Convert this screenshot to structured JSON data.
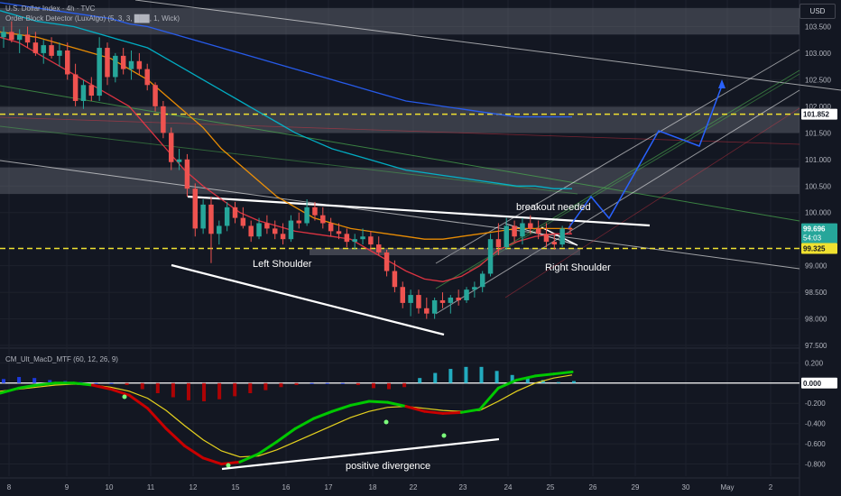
{
  "header": {
    "title": "U.S. Dollar Index · 4h · TVC",
    "indicator": "Order Block Detector (LuxAlgo) (5, 3, 3, ███, 1, Wick)",
    "currency": "USD"
  },
  "sub_header": {
    "indicator": "CM_Ult_MacD_MTF (60, 12, 26, 9)"
  },
  "colors": {
    "background": "#131722",
    "up_candle": "#26a69a",
    "down_candle": "#ef5350",
    "dashed_level": "#f0e130",
    "projection": "#2962ff",
    "macd_up": "#00c800",
    "macd_down": "#c80000",
    "signal": "#e6d21e",
    "hist_up": "#26c6da",
    "hist_blue": "#1e40ff"
  },
  "chart_data": [
    {
      "type": "candlestick",
      "title": "U.S. Dollar Index · 4h · TVC",
      "x_tick_labels": [
        "8",
        "9",
        "10",
        "11",
        "12",
        "15",
        "16",
        "17",
        "18",
        "22",
        "23",
        "24",
        "25",
        "26",
        "29",
        "30",
        "May",
        "2"
      ],
      "y_ticks": [
        103.5,
        103.0,
        102.5,
        102.0,
        101.5,
        101.0,
        100.5,
        100.0,
        99.0,
        98.5,
        98.0,
        97.5
      ],
      "ylim": [
        97.45,
        104.0
      ],
      "price_labels": [
        {
          "value": 101.852,
          "text": "101.852"
        },
        {
          "value": 99.696,
          "text": "99.696",
          "sub": "54:03"
        },
        {
          "value": 99.325,
          "text": "99.325"
        }
      ],
      "levels": [
        {
          "value": 101.852,
          "style": "dashed"
        },
        {
          "value": 99.325,
          "style": "dashed"
        }
      ],
      "zones": [
        {
          "from": 103.35,
          "to": 103.85
        },
        {
          "from": 101.5,
          "to": 101.99
        },
        {
          "from": 100.35,
          "to": 100.85
        }
      ],
      "annotations": [
        "Left Shoulder",
        "breakout needed",
        "Right Shoulder"
      ],
      "candles": [
        [
          103.3,
          103.5,
          103.1,
          103.4
        ],
        [
          103.4,
          103.6,
          103.2,
          103.25
        ],
        [
          103.25,
          103.45,
          103.0,
          103.35
        ],
        [
          103.35,
          103.5,
          103.1,
          103.2
        ],
        [
          103.2,
          103.4,
          102.95,
          103.0
        ],
        [
          103.0,
          103.25,
          102.8,
          103.15
        ],
        [
          103.15,
          103.3,
          102.9,
          102.95
        ],
        [
          102.95,
          103.2,
          102.75,
          103.05
        ],
        [
          103.05,
          103.2,
          102.5,
          102.6
        ],
        [
          102.6,
          102.8,
          102.0,
          102.1
        ],
        [
          102.1,
          102.5,
          101.95,
          102.4
        ],
        [
          102.4,
          102.55,
          102.1,
          102.2
        ],
        [
          102.2,
          103.3,
          102.1,
          103.1
        ],
        [
          103.1,
          103.2,
          102.4,
          102.55
        ],
        [
          102.55,
          103.0,
          102.45,
          102.95
        ],
        [
          102.95,
          103.1,
          102.6,
          102.7
        ],
        [
          102.7,
          103.05,
          102.5,
          102.85
        ],
        [
          102.85,
          103.0,
          102.6,
          102.7
        ],
        [
          102.7,
          102.8,
          102.3,
          102.4
        ],
        [
          102.4,
          102.45,
          101.9,
          102.0
        ],
        [
          102.0,
          102.1,
          101.4,
          101.5
        ],
        [
          101.5,
          101.6,
          100.8,
          100.95
        ],
        [
          100.95,
          101.2,
          100.8,
          101.0
        ],
        [
          101.0,
          101.1,
          100.3,
          100.45
        ],
        [
          100.45,
          100.55,
          99.55,
          99.7
        ],
        [
          99.7,
          100.25,
          99.6,
          100.15
        ],
        [
          100.15,
          100.3,
          99.05,
          99.6
        ],
        [
          99.6,
          99.85,
          99.4,
          99.75
        ],
        [
          99.75,
          100.2,
          99.65,
          100.1
        ],
        [
          100.1,
          100.2,
          99.8,
          99.9
        ],
        [
          99.9,
          100.1,
          99.7,
          99.75
        ],
        [
          99.75,
          99.85,
          99.45,
          99.55
        ],
        [
          99.55,
          99.9,
          99.5,
          99.8
        ],
        [
          99.8,
          99.95,
          99.6,
          99.7
        ],
        [
          99.7,
          99.85,
          99.5,
          99.6
        ],
        [
          99.6,
          99.8,
          99.4,
          99.5
        ],
        [
          99.5,
          99.95,
          99.45,
          99.85
        ],
        [
          99.85,
          100.0,
          99.7,
          99.8
        ],
        [
          99.8,
          100.25,
          99.75,
          100.1
        ],
        [
          100.1,
          100.2,
          99.85,
          99.95
        ],
        [
          99.95,
          100.1,
          99.7,
          99.8
        ],
        [
          99.8,
          99.9,
          99.55,
          99.65
        ],
        [
          99.65,
          99.8,
          99.5,
          99.6
        ],
        [
          99.6,
          99.7,
          99.35,
          99.45
        ],
        [
          99.45,
          99.6,
          99.3,
          99.5
        ],
        [
          99.5,
          99.7,
          99.4,
          99.55
        ],
        [
          99.55,
          99.65,
          99.3,
          99.4
        ],
        [
          99.4,
          99.55,
          99.2,
          99.25
        ],
        [
          99.25,
          99.3,
          98.8,
          98.9
        ],
        [
          98.9,
          99.1,
          98.5,
          98.6
        ],
        [
          98.6,
          98.7,
          98.2,
          98.3
        ],
        [
          98.3,
          98.55,
          98.05,
          98.45
        ],
        [
          98.45,
          98.55,
          98.1,
          98.2
        ],
        [
          98.2,
          98.4,
          98.0,
          98.1
        ],
        [
          98.1,
          98.4,
          98.0,
          98.35
        ],
        [
          98.35,
          98.5,
          98.2,
          98.3
        ],
        [
          98.3,
          98.45,
          98.1,
          98.4
        ],
        [
          98.4,
          98.55,
          98.25,
          98.35
        ],
        [
          98.35,
          98.6,
          98.3,
          98.55
        ],
        [
          98.55,
          98.7,
          98.4,
          98.6
        ],
        [
          98.6,
          98.9,
          98.5,
          98.85
        ],
        [
          98.85,
          99.6,
          98.8,
          99.5
        ],
        [
          99.5,
          99.8,
          99.2,
          99.35
        ],
        [
          99.35,
          99.9,
          99.3,
          99.75
        ],
        [
          99.75,
          99.85,
          99.45,
          99.55
        ],
        [
          99.55,
          99.9,
          99.4,
          99.8
        ],
        [
          99.8,
          99.95,
          99.6,
          99.7
        ],
        [
          99.7,
          99.85,
          99.5,
          99.6
        ],
        [
          99.6,
          99.8,
          99.35,
          99.45
        ],
        [
          99.45,
          99.6,
          99.3,
          99.4
        ],
        [
          99.4,
          99.75,
          99.35,
          99.7
        ],
        [
          99.7,
          99.8,
          99.6,
          99.696
        ]
      ],
      "ma_series": [
        {
          "color": "#f23645",
          "values": [
            103.3,
            103.2,
            103.0,
            102.8,
            102.6,
            102.4,
            102.2,
            102.0,
            101.6,
            101.2,
            100.8,
            100.5,
            100.25,
            100.0,
            99.85,
            99.75,
            99.65,
            99.6,
            99.55,
            99.5,
            99.3,
            99.1,
            98.9,
            98.75,
            98.7,
            98.8,
            99.0,
            99.3,
            99.45,
            99.55,
            99.6,
            99.6
          ]
        },
        {
          "color": "#ff9800",
          "values": [
            103.4,
            103.35,
            103.3,
            103.2,
            103.1,
            103.0,
            102.9,
            102.7,
            102.5,
            102.2,
            101.9,
            101.6,
            101.2,
            100.9,
            100.6,
            100.3,
            100.1,
            99.9,
            99.8,
            99.7,
            99.65,
            99.6,
            99.55,
            99.5,
            99.5,
            99.55,
            99.6,
            99.65,
            99.7,
            99.7,
            99.7,
            99.7
          ]
        },
        {
          "color": "#00bcd4",
          "values": [
            103.8,
            103.7,
            103.6,
            103.55,
            103.5,
            103.4,
            103.3,
            103.2,
            103.1,
            102.9,
            102.7,
            102.5,
            102.3,
            102.1,
            101.9,
            101.7,
            101.5,
            101.35,
            101.2,
            101.1,
            101.0,
            100.9,
            100.8,
            100.75,
            100.7,
            100.65,
            100.6,
            100.55,
            100.5,
            100.5,
            100.45,
            100.45
          ]
        },
        {
          "color": "#2962ff",
          "values": [
            103.95,
            103.9,
            103.85,
            103.8,
            103.75,
            103.7,
            103.65,
            103.55,
            103.5,
            103.4,
            103.3,
            103.2,
            103.1,
            103.0,
            102.9,
            102.8,
            102.7,
            102.6,
            102.5,
            102.4,
            102.3,
            102.2,
            102.1,
            102.05,
            102.0,
            101.95,
            101.9,
            101.85,
            101.8,
            101.8,
            101.8,
            101.8
          ]
        }
      ]
    },
    {
      "type": "line",
      "title": "CM_Ult_MacD_MTF (60, 12, 26, 9)",
      "y_ticks": [
        0.2,
        0.0,
        -0.2,
        -0.4,
        -0.6,
        -0.8
      ],
      "ylim": [
        -0.92,
        0.31
      ],
      "zero_value": "0.000",
      "annotation": "positive divergence",
      "series": [
        {
          "values": [
            -0.1,
            -0.05,
            -0.02,
            0.0,
            0.0,
            -0.02,
            -0.06,
            -0.12,
            -0.25,
            -0.45,
            -0.62,
            -0.74,
            -0.8,
            -0.78,
            -0.7,
            -0.58,
            -0.45,
            -0.35,
            -0.28,
            -0.22,
            -0.18,
            -0.19,
            -0.23,
            -0.28,
            -0.3,
            -0.29,
            -0.26,
            -0.05,
            0.03,
            0.07,
            0.09,
            0.11
          ]
        },
        {
          "values": [
            -0.08,
            -0.06,
            -0.04,
            -0.02,
            -0.01,
            -0.02,
            -0.04,
            -0.08,
            -0.15,
            -0.27,
            -0.42,
            -0.56,
            -0.67,
            -0.73,
            -0.72,
            -0.66,
            -0.58,
            -0.5,
            -0.42,
            -0.34,
            -0.28,
            -0.24,
            -0.23,
            -0.25,
            -0.27,
            -0.28,
            -0.27,
            -0.18,
            -0.08,
            0.0,
            0.05,
            0.08
          ]
        }
      ],
      "histogram": [
        0.04,
        0.06,
        0.05,
        0.03,
        0.02,
        0.01,
        0.0,
        0.0,
        -0.02,
        -0.06,
        -0.1,
        -0.14,
        -0.17,
        -0.18,
        -0.16,
        -0.13,
        -0.1,
        -0.07,
        -0.04,
        -0.02,
        0.0,
        0.0,
        0.0,
        -0.02,
        -0.05,
        -0.06,
        -0.04,
        0.05,
        0.1,
        0.14,
        0.16,
        0.16,
        0.12,
        0.08,
        0.05,
        0.03,
        0.01,
        0.02
      ]
    }
  ]
}
